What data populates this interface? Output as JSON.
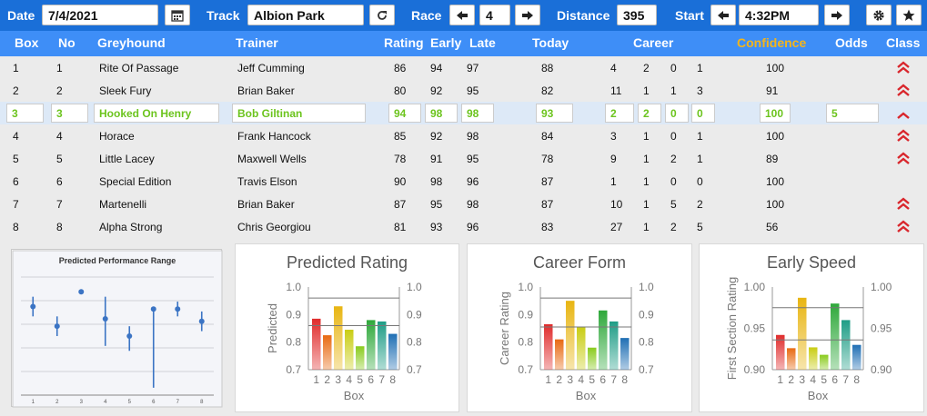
{
  "toolbar": {
    "date_label": "Date",
    "date_value": "7/4/2021",
    "track_label": "Track",
    "track_value": "Albion Park",
    "race_label": "Race",
    "race_value": "4",
    "distance_label": "Distance",
    "distance_value": "395",
    "start_label": "Start",
    "start_value": "4:32PM",
    "icons": [
      "calendar-icon",
      "refresh-icon",
      "arrow-left-icon",
      "arrow-right-icon",
      "gear-icon",
      "star-icon"
    ]
  },
  "columns": {
    "box": "Box",
    "no": "No",
    "greyhound": "Greyhound",
    "trainer": "Trainer",
    "rating": "Rating",
    "early": "Early",
    "late": "Late",
    "today": "Today",
    "career": "Career",
    "confidence": "Confidence",
    "odds": "Odds",
    "class": "Class"
  },
  "accent_colors": {
    "toolbar": "#1a6fd8",
    "header": "#3e8ef7",
    "confidence": "#f5b51a",
    "selected_text": "#6cc41e",
    "chevron": "#d9262c"
  },
  "rows": [
    {
      "box": "1",
      "no": "1",
      "greyhound": "Rite Of Passage",
      "trainer": "Jeff Cumming",
      "rating": "86",
      "early": "94",
      "late": "97",
      "today": "88",
      "c1": "4",
      "c2": "2",
      "c3": "0",
      "c4": "1",
      "confidence": "100",
      "odds": "",
      "chevrons": 2
    },
    {
      "box": "2",
      "no": "2",
      "greyhound": "Sleek Fury",
      "trainer": "Brian Baker",
      "rating": "80",
      "early": "92",
      "late": "95",
      "today": "82",
      "c1": "11",
      "c2": "1",
      "c3": "1",
      "c4": "3",
      "confidence": "91",
      "odds": "",
      "chevrons": 2
    },
    {
      "box": "3",
      "no": "3",
      "greyhound": "Hooked On Henry",
      "trainer": "Bob Giltinan",
      "rating": "94",
      "early": "98",
      "late": "98",
      "today": "93",
      "c1": "2",
      "c2": "2",
      "c3": "0",
      "c4": "0",
      "confidence": "100",
      "odds": "5",
      "chevrons": 1,
      "selected": true
    },
    {
      "box": "4",
      "no": "4",
      "greyhound": "Horace",
      "trainer": "Frank Hancock",
      "rating": "85",
      "early": "92",
      "late": "98",
      "today": "84",
      "c1": "3",
      "c2": "1",
      "c3": "0",
      "c4": "1",
      "confidence": "100",
      "odds": "",
      "chevrons": 2
    },
    {
      "box": "5",
      "no": "5",
      "greyhound": "Little Lacey",
      "trainer": "Maxwell Wells",
      "rating": "78",
      "early": "91",
      "late": "95",
      "today": "78",
      "c1": "9",
      "c2": "1",
      "c3": "2",
      "c4": "1",
      "confidence": "89",
      "odds": "",
      "chevrons": 2
    },
    {
      "box": "6",
      "no": "6",
      "greyhound": "Special Edition",
      "trainer": "Travis Elson",
      "rating": "90",
      "early": "98",
      "late": "96",
      "today": "87",
      "c1": "1",
      "c2": "1",
      "c3": "0",
      "c4": "0",
      "confidence": "100",
      "odds": "",
      "chevrons": 0
    },
    {
      "box": "7",
      "no": "7",
      "greyhound": "Martenelli",
      "trainer": "Brian Baker",
      "rating": "87",
      "early": "95",
      "late": "98",
      "today": "87",
      "c1": "10",
      "c2": "1",
      "c3": "5",
      "c4": "2",
      "confidence": "100",
      "odds": "",
      "chevrons": 2
    },
    {
      "box": "8",
      "no": "8",
      "greyhound": "Alpha Strong",
      "trainer": "Chris Georgiou",
      "rating": "81",
      "early": "93",
      "late": "96",
      "today": "83",
      "c1": "27",
      "c2": "1",
      "c3": "2",
      "c4": "5",
      "confidence": "56",
      "odds": "",
      "chevrons": 2
    }
  ],
  "chart_data": [
    {
      "type": "scatter",
      "title": "Predicted Performance Range",
      "categories": [
        "1",
        "2",
        "3",
        "4",
        "5",
        "6",
        "7",
        "8"
      ],
      "values": [
        0.88,
        0.84,
        0.91,
        0.855,
        0.82,
        0.875,
        0.875,
        0.85
      ],
      "low": [
        0.86,
        0.82,
        0.905,
        0.8,
        0.79,
        0.715,
        0.86,
        0.83
      ],
      "high": [
        0.9,
        0.86,
        0.915,
        0.9,
        0.84,
        0.875,
        0.89,
        0.87
      ],
      "ylim": [
        0.7,
        0.94
      ],
      "grid": true
    },
    {
      "type": "bar",
      "title": "Predicted Rating",
      "categories": [
        "1",
        "2",
        "3",
        "4",
        "5",
        "6",
        "7",
        "8"
      ],
      "values": [
        0.885,
        0.825,
        0.93,
        0.845,
        0.785,
        0.88,
        0.875,
        0.83
      ],
      "xlabel": "Box",
      "ylabel": "Predicted",
      "ylim": [
        0.7,
        1.0
      ],
      "yticks": [
        "0.7",
        "0.8",
        "0.9",
        "1.0"
      ],
      "reference_lines": [
        0.96,
        0.86
      ],
      "colors": [
        "#e02c2c",
        "#e86a12",
        "#e8b512",
        "#c9cd14",
        "#8acb1d",
        "#2ea83a",
        "#1f9d86",
        "#1f6fb4"
      ]
    },
    {
      "type": "bar",
      "title": "Career Form",
      "categories": [
        "1",
        "2",
        "3",
        "4",
        "5",
        "6",
        "7",
        "8"
      ],
      "values": [
        0.865,
        0.81,
        0.95,
        0.855,
        0.78,
        0.915,
        0.875,
        0.815
      ],
      "xlabel": "Box",
      "ylabel": "Career Rating",
      "ylim": [
        0.7,
        1.0
      ],
      "yticks": [
        "0.7",
        "0.8",
        "0.9",
        "1.0"
      ],
      "reference_lines": [
        0.96,
        0.855
      ],
      "colors": [
        "#e02c2c",
        "#e86a12",
        "#e8b512",
        "#c9cd14",
        "#8acb1d",
        "#2ea83a",
        "#1f9d86",
        "#1f6fb4"
      ]
    },
    {
      "type": "bar",
      "title": "Early Speed",
      "categories": [
        "1",
        "2",
        "3",
        "4",
        "5",
        "6",
        "7",
        "8"
      ],
      "values": [
        0.942,
        0.926,
        0.987,
        0.927,
        0.918,
        0.98,
        0.96,
        0.93
      ],
      "xlabel": "Box",
      "ylabel": "First Section Rating",
      "ylim": [
        0.9,
        1.0
      ],
      "yticks": [
        "0.90",
        "0.95",
        "1.00"
      ],
      "reference_lines": [
        0.975,
        0.936
      ],
      "colors": [
        "#e02c2c",
        "#e86a12",
        "#e8b512",
        "#c9cd14",
        "#8acb1d",
        "#2ea83a",
        "#1f9d86",
        "#1f6fb4"
      ]
    }
  ]
}
